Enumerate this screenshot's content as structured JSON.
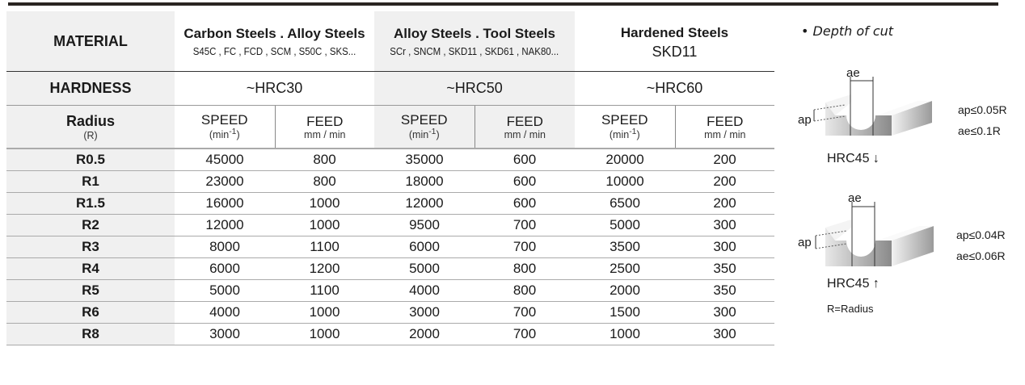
{
  "header": {
    "material_label": "MATERIAL",
    "hardness_label": "HARDNESS",
    "radius_label": "Radius",
    "radius_sub": "(R)",
    "groups": [
      {
        "name": "Carbon Steels . Alloy Steels",
        "examples": "S45C , FC , FCD , SCM , S50C , SKS...",
        "hardness": "~HRC30"
      },
      {
        "name": "Alloy  Steels . Tool Steels",
        "examples": "SCr , SNCM , SKD11 , SKD61 , NAK80...",
        "hardness": "~HRC50"
      },
      {
        "name": "Hardened Steels",
        "examples": "SKD11",
        "hardness": "~HRC60"
      }
    ],
    "speed_label": "SPEED",
    "speed_unit_base": "(min",
    "speed_unit_exp": "-1",
    "speed_unit_end": ")",
    "feed_label": "FEED",
    "feed_unit": "mm / min"
  },
  "rows": [
    {
      "r": "R0.5",
      "v": [
        "45000",
        "800",
        "35000",
        "600",
        "20000",
        "200"
      ]
    },
    {
      "r": "R1",
      "v": [
        "23000",
        "800",
        "18000",
        "600",
        "10000",
        "200"
      ]
    },
    {
      "r": "R1.5",
      "v": [
        "16000",
        "1000",
        "12000",
        "600",
        "6500",
        "200"
      ]
    },
    {
      "r": "R2",
      "v": [
        "12000",
        "1000",
        "9500",
        "700",
        "5000",
        "300"
      ]
    },
    {
      "r": "R3",
      "v": [
        "8000",
        "1100",
        "6000",
        "700",
        "3500",
        "300"
      ]
    },
    {
      "r": "R4",
      "v": [
        "6000",
        "1200",
        "5000",
        "800",
        "2500",
        "350"
      ]
    },
    {
      "r": "R5",
      "v": [
        "5000",
        "1100",
        "4000",
        "800",
        "2000",
        "350"
      ]
    },
    {
      "r": "R6",
      "v": [
        "4000",
        "1000",
        "3000",
        "700",
        "1500",
        "300"
      ]
    },
    {
      "r": "R8",
      "v": [
        "3000",
        "1000",
        "2000",
        "700",
        "1000",
        "300"
      ]
    }
  ],
  "side": {
    "title": "•  Depth of cut",
    "ae": "ae",
    "ap": "ap",
    "d1": {
      "ap": "ap≤0.05R",
      "ae": "ae≤0.1R",
      "hrc": "HRC45 ↓"
    },
    "d2": {
      "ap": "ap≤0.04R",
      "ae": "ae≤0.06R",
      "hrc": "HRC45 ↑"
    },
    "note": "R=Radius"
  },
  "colors": {
    "shade": "#f0f0f0",
    "rule": "#2a2522"
  }
}
